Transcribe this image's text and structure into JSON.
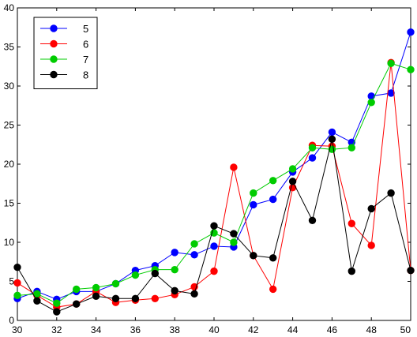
{
  "chart_data": {
    "type": "line",
    "x": [
      30,
      31,
      32,
      33,
      34,
      35,
      36,
      37,
      38,
      39,
      40,
      41,
      42,
      43,
      44,
      45,
      46,
      47,
      48,
      49,
      50
    ],
    "xlim": [
      30,
      50
    ],
    "ylim": [
      0,
      40
    ],
    "xticks": [
      30,
      32,
      34,
      36,
      38,
      40,
      42,
      44,
      46,
      48,
      50
    ],
    "yticks": [
      0,
      5,
      10,
      15,
      20,
      25,
      30,
      35,
      40
    ],
    "grid": false,
    "legend_position": "top-left",
    "series": [
      {
        "name": "5",
        "color": "#0000ff",
        "values": [
          2.8,
          3.7,
          2.7,
          3.7,
          3.7,
          4.7,
          6.4,
          7.0,
          8.7,
          8.4,
          9.5,
          9.4,
          14.8,
          15.5,
          19.0,
          20.8,
          24.1,
          22.8,
          28.7,
          29.1,
          36.9
        ]
      },
      {
        "name": "6",
        "color": "#ff0000",
        "values": [
          4.8,
          3.2,
          1.7,
          2.1,
          3.7,
          2.3,
          2.6,
          2.8,
          3.3,
          4.3,
          6.3,
          19.6,
          8.3,
          4.0,
          17.0,
          22.4,
          22.3,
          12.4,
          9.6,
          33.0,
          6.4
        ]
      },
      {
        "name": "7",
        "color": "#00cc00",
        "values": [
          3.2,
          3.4,
          2.2,
          4.0,
          4.2,
          4.7,
          5.8,
          6.5,
          6.5,
          9.8,
          11.2,
          10.0,
          16.3,
          17.9,
          19.4,
          22.1,
          21.9,
          22.1,
          27.9,
          32.9,
          32.1
        ]
      },
      {
        "name": "8",
        "color": "#000000",
        "values": [
          6.8,
          2.5,
          1.1,
          2.1,
          3.1,
          2.8,
          2.8,
          6.0,
          3.8,
          3.4,
          12.1,
          11.1,
          8.3,
          8.0,
          17.8,
          12.8,
          23.2,
          6.3,
          14.3,
          16.3,
          6.4
        ]
      }
    ]
  }
}
